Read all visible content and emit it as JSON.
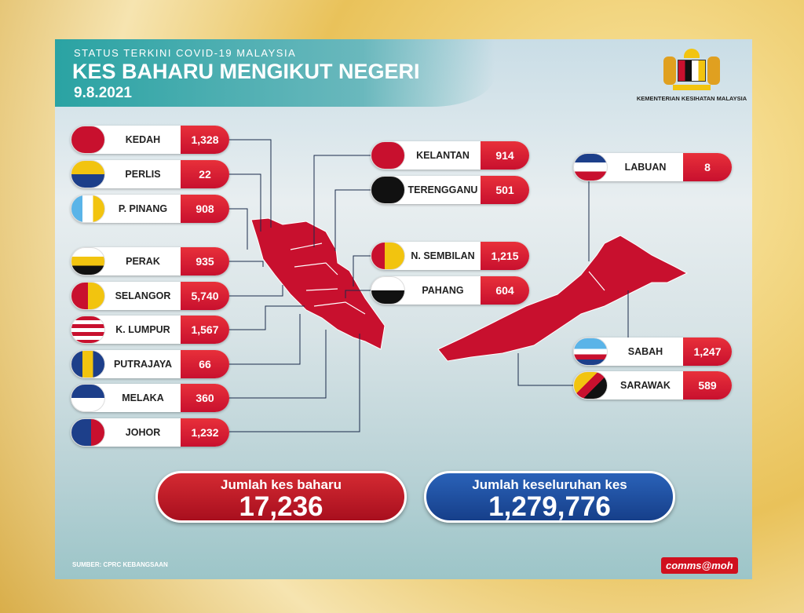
{
  "header": {
    "subtitle": "STATUS TERKINI COVID-19 MALAYSIA",
    "title": "KES BAHARU MENGIKUT NEGERI",
    "date": "9.8.2021"
  },
  "logo": {
    "text": "KEMENTERIAN KESIHATAN MALAYSIA"
  },
  "states_left": [
    {
      "name": "KEDAH",
      "value": "1,328"
    },
    {
      "name": "PERLIS",
      "value": "22"
    },
    {
      "name": "P. PINANG",
      "value": "908"
    },
    {
      "name": "PERAK",
      "value": "935"
    },
    {
      "name": "SELANGOR",
      "value": "5,740"
    },
    {
      "name": "K. LUMPUR",
      "value": "1,567"
    },
    {
      "name": "PUTRAJAYA",
      "value": "66"
    },
    {
      "name": "MELAKA",
      "value": "360"
    },
    {
      "name": "JOHOR",
      "value": "1,232"
    }
  ],
  "states_mid": [
    {
      "name": "KELANTAN",
      "value": "914"
    },
    {
      "name": "TERENGGANU",
      "value": "501"
    },
    {
      "name": "N. SEMBILAN",
      "value": "1,215"
    },
    {
      "name": "PAHANG",
      "value": "604"
    }
  ],
  "states_right": [
    {
      "name": "LABUAN",
      "value": "8"
    },
    {
      "name": "SABAH",
      "value": "1,247"
    },
    {
      "name": "SARAWAK",
      "value": "589"
    }
  ],
  "totals": {
    "new_label": "Jumlah kes baharu",
    "new_value": "17,236",
    "cum_label": "Jumlah keseluruhan kes",
    "cum_value": "1,279,776"
  },
  "footer": {
    "source": "SUMBER: CPRC KEBANGSAAN",
    "brand": "comms@moh"
  },
  "colors": {
    "red": "#c8102e",
    "blue": "#1d4fa0",
    "teal": "#2aa3a3",
    "map": "#c8102e"
  }
}
